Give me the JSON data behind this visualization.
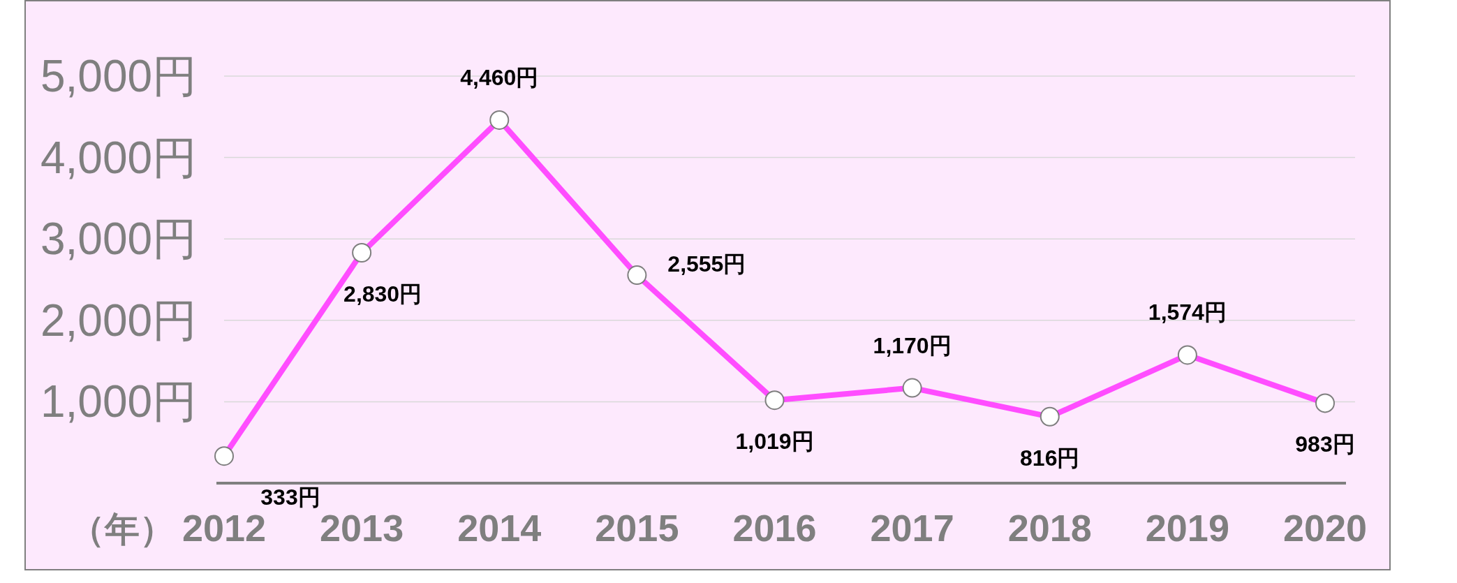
{
  "chart_data": {
    "type": "line",
    "xlabel": "（年）",
    "categories": [
      "2012",
      "2013",
      "2014",
      "2015",
      "2016",
      "2017",
      "2018",
      "2019",
      "2020"
    ],
    "values": [
      333,
      2830,
      4460,
      2555,
      1019,
      1170,
      816,
      1574,
      983
    ],
    "value_labels": [
      "333円",
      "2,830円",
      "4,460円",
      "2,555円",
      "1,019円",
      "1,170円",
      "816円",
      "1,574円",
      "983円"
    ],
    "color": "#ff4dff",
    "ylim": [
      0,
      5000
    ],
    "yticks": [
      {
        "value": 1000,
        "label": "1,000円"
      },
      {
        "value": 2000,
        "label": "2,000円"
      },
      {
        "value": 3000,
        "label": "3,000円"
      },
      {
        "value": 4000,
        "label": "4,000円"
      },
      {
        "value": 5000,
        "label": "5,000円"
      }
    ],
    "grid": "y",
    "marker": "circle"
  }
}
